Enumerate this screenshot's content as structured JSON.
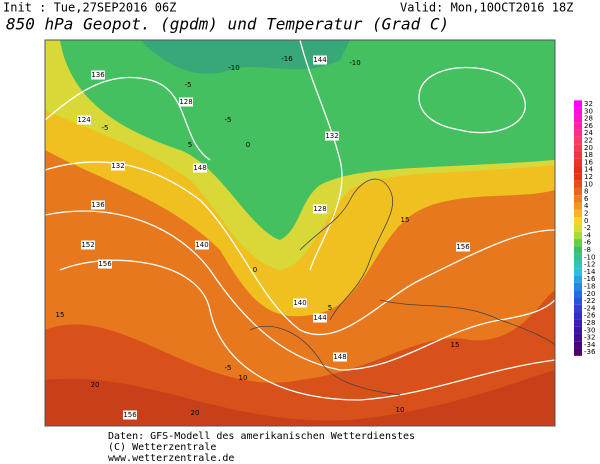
{
  "header": {
    "init": "Init : Tue,27SEP2016 06Z",
    "valid": "Valid: Mon,10OCT2016 18Z",
    "title": "850 hPa Geopot. (gpdm) und Temperatur (Grad C)"
  },
  "colorbar": {
    "levels": [
      32,
      30,
      28,
      26,
      24,
      22,
      20,
      18,
      16,
      14,
      12,
      10,
      8,
      6,
      4,
      2,
      0,
      -2,
      -4,
      -6,
      -8,
      -10,
      -12,
      -14,
      -16,
      -18,
      -20,
      -22,
      -24,
      -26,
      -28,
      -30,
      -32,
      -34,
      -36
    ]
  },
  "map": {
    "geopotential_labels": [
      132,
      136,
      144,
      124,
      128,
      140,
      148,
      152,
      156,
      140,
      144,
      148,
      128,
      132,
      136,
      156,
      156
    ],
    "temperature_labels": [
      -10,
      -16,
      -5,
      -5,
      -10,
      -5,
      0,
      5,
      10,
      15,
      15,
      20,
      20,
      15,
      10,
      5,
      0,
      -5
    ]
  },
  "footer": {
    "source": "Daten: GFS-Modell des amerikanischen Wetterdienstes",
    "copyright": "(C) Wetterzentrale",
    "url": "www.wetterzentrale.de"
  }
}
